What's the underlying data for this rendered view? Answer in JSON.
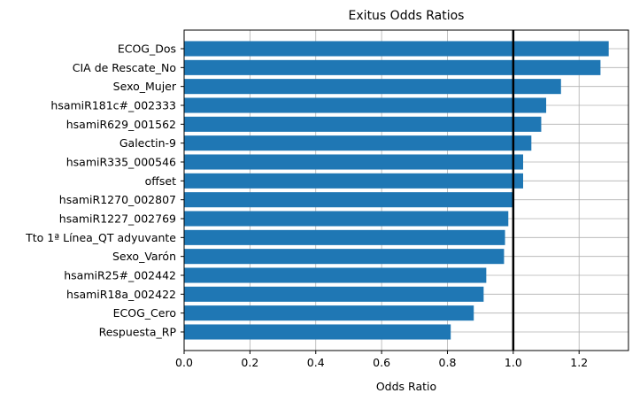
{
  "chart_data": {
    "type": "bar",
    "orientation": "horizontal",
    "title": "Exitus Odds Ratios",
    "xlabel": "Odds Ratio",
    "ylabel": "",
    "xlim": [
      0,
      1.35
    ],
    "xticks": [
      "0.0",
      "0.2",
      "0.4",
      "0.6",
      "0.8",
      "1.0",
      "1.2"
    ],
    "grid": true,
    "reference_line": 1.0,
    "bar_color": "#1f77b4",
    "categories": [
      "ECOG_Dos",
      "CIA de Rescate_No",
      "Sexo_Mujer",
      "hsamiR181c#_002333",
      "hsamiR629_001562",
      "Galectin-9",
      "hsamiR335_000546",
      "offset",
      "hsamiR1270_002807",
      "hsamiR1227_002769",
      "Tto 1ª Línea_QT adyuvante",
      "Sexo_Varón",
      "hsamiR25#_002442",
      "hsamiR18a_002422",
      "ECOG_Cero",
      "Respuesta_RP"
    ],
    "values": [
      1.29,
      1.265,
      1.145,
      1.1,
      1.085,
      1.055,
      1.03,
      1.03,
      1.0,
      0.985,
      0.975,
      0.972,
      0.918,
      0.91,
      0.88,
      0.81
    ]
  }
}
